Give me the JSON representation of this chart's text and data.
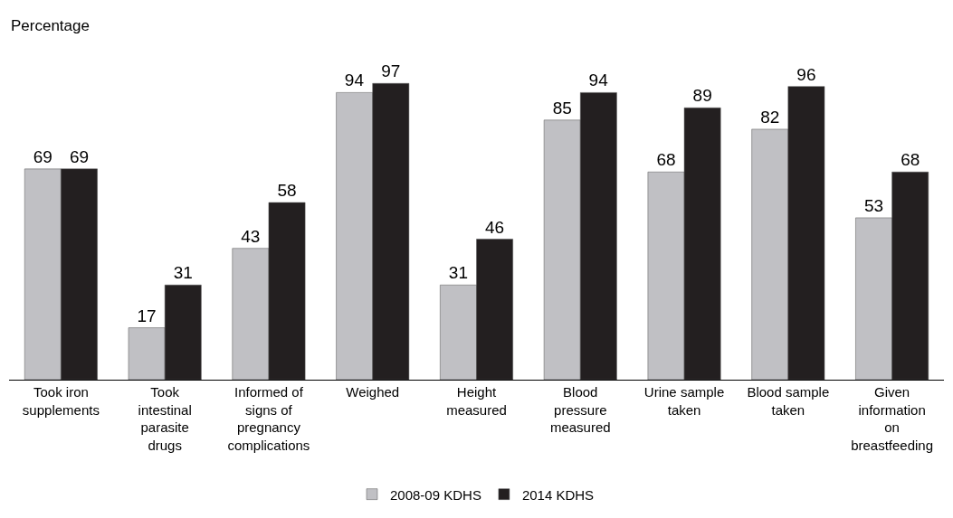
{
  "chart_data": {
    "type": "bar",
    "ylabel": "Percentage",
    "categories": [
      "Took iron supplements",
      "Took intestinal parasite drugs",
      "Informed of signs of pregnancy complications",
      "Weighed",
      "Height measured",
      "Blood pressure measured",
      "Urine sample taken",
      "Blood sample taken",
      "Given information on breastfeeding"
    ],
    "series": [
      {
        "name": "2008-09 KDHS",
        "color": "#c0c0c4",
        "values": [
          69,
          17,
          43,
          94,
          31,
          85,
          68,
          82,
          53
        ]
      },
      {
        "name": "2014 KDHS",
        "color": "#231f20",
        "values": [
          69,
          31,
          58,
          97,
          46,
          94,
          89,
          96,
          68
        ]
      }
    ],
    "data_labels": true,
    "legend": "bottom"
  }
}
